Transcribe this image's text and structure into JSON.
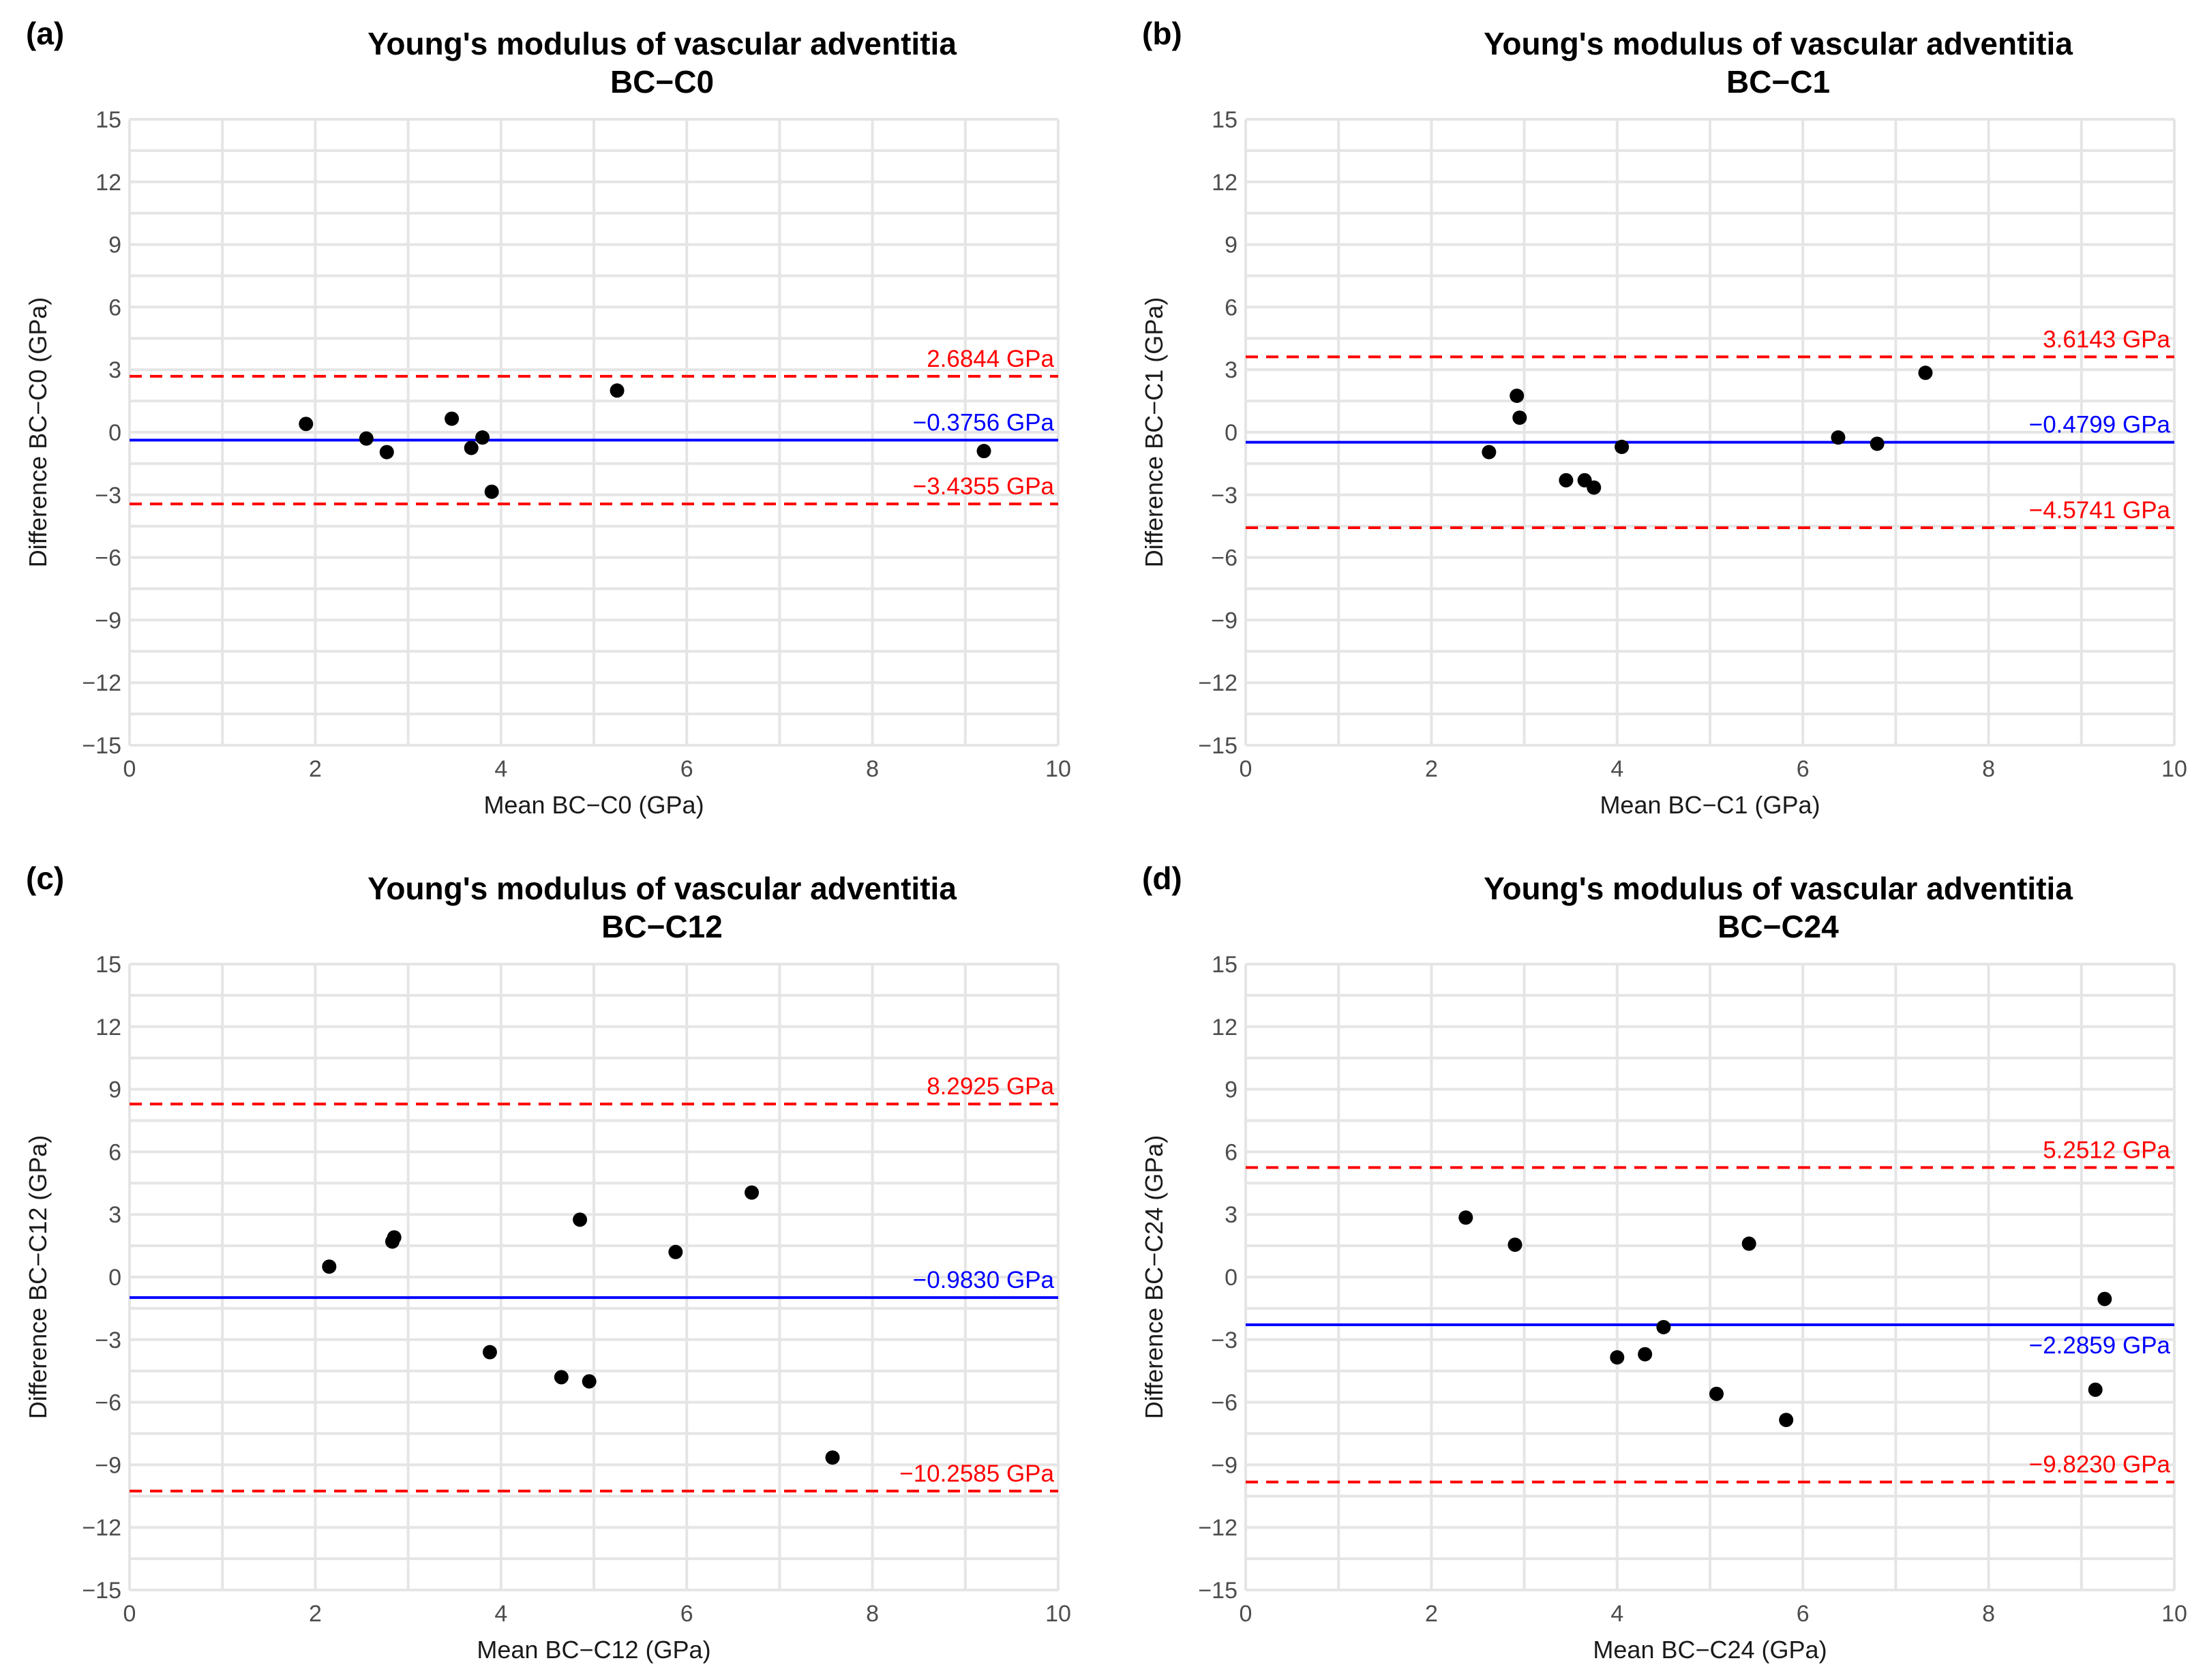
{
  "chart_data": [
    {
      "type": "scatter",
      "panel_label": "(a)",
      "title": "Young's modulus of vascular adventitia",
      "subtitle": "BC−C0",
      "xlabel": "Mean BC−C0 (GPa)",
      "ylabel": "Difference BC−C0 (GPa)",
      "xlim": [
        0,
        10
      ],
      "ylim": [
        -15,
        15
      ],
      "x_ticks": [
        "0",
        "2",
        "4",
        "6",
        "8",
        "10"
      ],
      "y_ticks": [
        "−15",
        "−12",
        "−9",
        "−6",
        "−3",
        "0",
        "3",
        "6",
        "9",
        "12",
        "15"
      ],
      "points": [
        {
          "x": 1.9,
          "y": 0.4
        },
        {
          "x": 2.55,
          "y": -0.3
        },
        {
          "x": 2.77,
          "y": -0.95
        },
        {
          "x": 3.47,
          "y": 0.65
        },
        {
          "x": 3.68,
          "y": -0.75
        },
        {
          "x": 3.8,
          "y": -0.25
        },
        {
          "x": 3.9,
          "y": -2.85
        },
        {
          "x": 5.25,
          "y": 2.0
        },
        {
          "x": 9.2,
          "y": -0.9
        }
      ],
      "mean_line": {
        "value": -0.3756,
        "label": "−0.3756 GPa",
        "color": "#0000ff"
      },
      "upper_loa": {
        "value": 2.6844,
        "label": "2.6844 GPa",
        "color": "#ff0000"
      },
      "lower_loa": {
        "value": -3.4355,
        "label": "−3.4355 GPa",
        "color": "#ff0000"
      }
    },
    {
      "type": "scatter",
      "panel_label": "(b)",
      "title": "Young's modulus of vascular adventitia",
      "subtitle": "BC−C1",
      "xlabel": "Mean BC−C1 (GPa)",
      "ylabel": "Difference BC−C1 (GPa)",
      "xlim": [
        0,
        10
      ],
      "ylim": [
        -15,
        15
      ],
      "x_ticks": [
        "0",
        "2",
        "4",
        "6",
        "8",
        "10"
      ],
      "y_ticks": [
        "−15",
        "−12",
        "−9",
        "−6",
        "−3",
        "0",
        "3",
        "6",
        "9",
        "12",
        "15"
      ],
      "points": [
        {
          "x": 2.62,
          "y": -0.95
        },
        {
          "x": 2.92,
          "y": 1.75
        },
        {
          "x": 2.95,
          "y": 0.7
        },
        {
          "x": 3.45,
          "y": -2.3
        },
        {
          "x": 3.65,
          "y": -2.3
        },
        {
          "x": 3.75,
          "y": -2.65
        },
        {
          "x": 4.05,
          "y": -0.7
        },
        {
          "x": 6.38,
          "y": -0.25
        },
        {
          "x": 6.8,
          "y": -0.55
        },
        {
          "x": 7.32,
          "y": 2.85
        }
      ],
      "mean_line": {
        "value": -0.4799,
        "label": "−0.4799 GPa",
        "color": "#0000ff"
      },
      "upper_loa": {
        "value": 3.6143,
        "label": "3.6143 GPa",
        "color": "#ff0000"
      },
      "lower_loa": {
        "value": -4.5741,
        "label": "−4.5741 GPa",
        "color": "#ff0000"
      }
    },
    {
      "type": "scatter",
      "panel_label": "(c)",
      "title": "Young's modulus of vascular adventitia",
      "subtitle": "BC−C12",
      "xlabel": "Mean BC−C12 (GPa)",
      "ylabel": "Difference BC−C12 (GPa)",
      "xlim": [
        0,
        10
      ],
      "ylim": [
        -15,
        15
      ],
      "x_ticks": [
        "0",
        "2",
        "4",
        "6",
        "8",
        "10"
      ],
      "y_ticks": [
        "−15",
        "−12",
        "−9",
        "−6",
        "−3",
        "0",
        "3",
        "6",
        "9",
        "12",
        "15"
      ],
      "points": [
        {
          "x": 2.15,
          "y": 0.5
        },
        {
          "x": 2.83,
          "y": 1.7
        },
        {
          "x": 2.85,
          "y": 1.9
        },
        {
          "x": 3.88,
          "y": -3.6
        },
        {
          "x": 4.65,
          "y": -4.8
        },
        {
          "x": 4.85,
          "y": 2.75
        },
        {
          "x": 4.95,
          "y": -5.0
        },
        {
          "x": 5.88,
          "y": 1.2
        },
        {
          "x": 6.7,
          "y": 4.05
        },
        {
          "x": 7.57,
          "y": -8.65
        }
      ],
      "mean_line": {
        "value": -0.983,
        "label": "−0.9830 GPa",
        "color": "#0000ff"
      },
      "upper_loa": {
        "value": 8.2925,
        "label": "8.2925 GPa",
        "color": "#ff0000"
      },
      "lower_loa": {
        "value": -10.2585,
        "label": "−10.2585 GPa",
        "color": "#ff0000"
      }
    },
    {
      "type": "scatter",
      "panel_label": "(d)",
      "title": "Young's modulus of vascular adventitia",
      "subtitle": "BC−C24",
      "xlabel": "Mean BC−C24 (GPa)",
      "ylabel": "Difference BC−C24 (GPa)",
      "xlim": [
        0,
        10
      ],
      "ylim": [
        -15,
        15
      ],
      "x_ticks": [
        "0",
        "2",
        "4",
        "6",
        "8",
        "10"
      ],
      "y_ticks": [
        "−15",
        "−12",
        "−9",
        "−6",
        "−3",
        "0",
        "3",
        "6",
        "9",
        "12",
        "15"
      ],
      "points": [
        {
          "x": 2.37,
          "y": 2.85
        },
        {
          "x": 2.9,
          "y": 1.55
        },
        {
          "x": 4.0,
          "y": -3.85
        },
        {
          "x": 4.3,
          "y": -3.7
        },
        {
          "x": 4.5,
          "y": -2.4
        },
        {
          "x": 5.07,
          "y": -5.6
        },
        {
          "x": 5.42,
          "y": 1.6
        },
        {
          "x": 5.82,
          "y": -6.85
        },
        {
          "x": 9.15,
          "y": -5.4
        },
        {
          "x": 9.25,
          "y": -1.05
        }
      ],
      "mean_line": {
        "value": -2.2859,
        "label": "−2.2859 GPa",
        "color": "#0000ff"
      },
      "upper_loa": {
        "value": 5.2512,
        "label": "5.2512 GPa",
        "color": "#ff0000"
      },
      "lower_loa": {
        "value": -9.823,
        "label": "−9.8230 GPa",
        "color": "#ff0000"
      }
    }
  ]
}
